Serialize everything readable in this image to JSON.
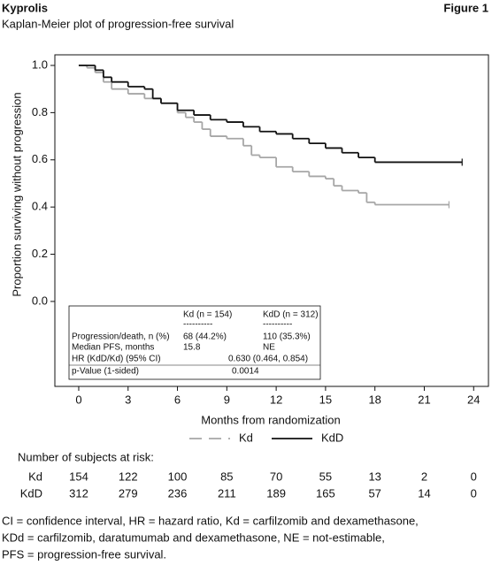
{
  "header": {
    "title": "Kyprolis",
    "figure": "Figure 1",
    "subtitle": "Kaplan-Meier plot of progression-free survival"
  },
  "chart_data": {
    "type": "step",
    "ylabel": "Proportion surviving without progression",
    "xlabel": "Months from randomization",
    "xlim": [
      -1.45,
      24.9
    ],
    "ylim": [
      -0.36,
      1.045
    ],
    "xticks": [
      0,
      3,
      6,
      9,
      12,
      15,
      18,
      21,
      24
    ],
    "yticks": [
      {
        "value": 0,
        "label": "0.0"
      },
      {
        "value": 0.2,
        "label": "0.2"
      },
      {
        "value": 0.4,
        "label": "0.4"
      },
      {
        "value": 0.6,
        "label": "0.6"
      },
      {
        "value": 0.8,
        "label": "0.8"
      },
      {
        "value": 1,
        "label": "1.0"
      }
    ],
    "series": [
      {
        "name": "Kd",
        "color": "#a6a6a6",
        "dashed_legend": true,
        "x": [
          0,
          0.5,
          1,
          1.5,
          2,
          3,
          4,
          5,
          6,
          6.5,
          7,
          7.5,
          8,
          9,
          10,
          10.5,
          11,
          12,
          13,
          14,
          15,
          15.5,
          16,
          17,
          17.5,
          18,
          22.5
        ],
        "values": [
          1.0,
          0.99,
          0.97,
          0.93,
          0.9,
          0.88,
          0.86,
          0.84,
          0.8,
          0.78,
          0.76,
          0.73,
          0.7,
          0.69,
          0.66,
          0.62,
          0.61,
          0.57,
          0.55,
          0.53,
          0.52,
          0.49,
          0.47,
          0.46,
          0.42,
          0.41,
          0.41
        ]
      },
      {
        "name": "KdD",
        "color": "#111111",
        "dashed_legend": false,
        "x": [
          0,
          1,
          1.5,
          2,
          3,
          4,
          4.5,
          5,
          6,
          7,
          8,
          9,
          10,
          11,
          12,
          13,
          14,
          15,
          16,
          17,
          18,
          23.3
        ],
        "values": [
          1.0,
          0.98,
          0.95,
          0.93,
          0.91,
          0.9,
          0.86,
          0.84,
          0.81,
          0.79,
          0.77,
          0.76,
          0.74,
          0.72,
          0.71,
          0.69,
          0.67,
          0.65,
          0.63,
          0.61,
          0.59,
          0.59
        ]
      }
    ]
  },
  "inset_table": {
    "headers": [
      "Kd (n = 154)",
      "KdD (n = 312)"
    ],
    "rule": "----------",
    "rows": [
      [
        "Progression/death, n (%)",
        "68 (44.2%)",
        "110 (35.3%)"
      ],
      [
        "Median PFS, months",
        "15.8",
        "NE"
      ],
      [
        "HR (KdD/Kd) (95% CI)",
        "0.630 (0.464, 0.854)"
      ],
      [
        "p-Value (1-sided)",
        "0.0014"
      ]
    ]
  },
  "risk_table": {
    "title": "Number of subjects at risk:",
    "rows": [
      {
        "name": "Kd",
        "values": [
          154,
          122,
          100,
          85,
          70,
          55,
          13,
          2,
          0
        ]
      },
      {
        "name": "KdD",
        "values": [
          312,
          279,
          236,
          211,
          189,
          165,
          57,
          14,
          0
        ]
      }
    ]
  },
  "footnote": [
    "CI = confidence interval, HR = hazard ratio, Kd = carfilzomib and dexamethasone,",
    "KDd = carfilzomib, daratumumab and dexamethasone, NE = not-estimable,",
    "PFS = progression-free survival."
  ]
}
